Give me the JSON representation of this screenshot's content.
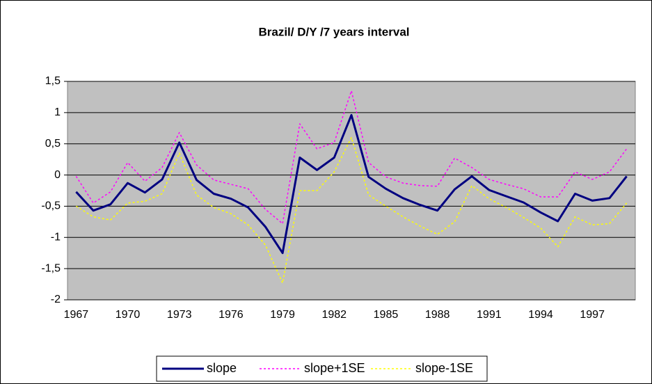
{
  "chart_data": {
    "type": "line",
    "title": "Brazil/ D/Y /7 years interval",
    "categories": [
      "1967",
      null,
      null,
      "1970",
      null,
      null,
      "1973",
      null,
      null,
      "1976",
      null,
      null,
      "1979",
      null,
      null,
      "1982",
      null,
      null,
      "1985",
      null,
      null,
      "1988",
      null,
      null,
      "1991",
      null,
      null,
      "1994",
      null,
      null,
      "1997",
      null,
      null
    ],
    "series": [
      {
        "name": "slope",
        "color": "#000080",
        "dashed": false,
        "values": [
          -0.27,
          -0.57,
          -0.47,
          -0.13,
          -0.28,
          -0.07,
          0.52,
          -0.08,
          -0.3,
          -0.38,
          -0.52,
          -0.83,
          -1.25,
          0.28,
          0.08,
          0.28,
          0.96,
          -0.03,
          -0.22,
          -0.37,
          -0.48,
          -0.57,
          -0.23,
          -0.02,
          -0.24,
          -0.34,
          -0.44,
          -0.6,
          -0.74,
          -0.3,
          -0.41,
          -0.37,
          -0.02
        ]
      },
      {
        "name": "slope+1SE",
        "color": "#ff00ff",
        "dashed": true,
        "values": [
          -0.02,
          -0.45,
          -0.27,
          0.2,
          -0.1,
          0.12,
          0.68,
          0.16,
          -0.08,
          -0.15,
          -0.22,
          -0.55,
          -0.78,
          0.82,
          0.42,
          0.52,
          1.35,
          0.2,
          -0.03,
          -0.13,
          -0.17,
          -0.18,
          0.27,
          0.12,
          -0.07,
          -0.15,
          -0.22,
          -0.35,
          -0.35,
          0.05,
          -0.07,
          0.05,
          0.42
        ]
      },
      {
        "name": "slope-1SE",
        "color": "#ffff00",
        "dashed": true,
        "values": [
          -0.5,
          -0.67,
          -0.72,
          -0.45,
          -0.42,
          -0.3,
          0.35,
          -0.32,
          -0.52,
          -0.62,
          -0.8,
          -1.12,
          -1.73,
          -0.25,
          -0.25,
          0.05,
          0.6,
          -0.32,
          -0.5,
          -0.67,
          -0.82,
          -0.95,
          -0.75,
          -0.17,
          -0.38,
          -0.52,
          -0.68,
          -0.85,
          -1.15,
          -0.67,
          -0.8,
          -0.78,
          -0.45
        ]
      }
    ],
    "ylim": [
      -2,
      1.5
    ],
    "yticks": [
      -2,
      {
        "value": -1.5,
        "label": "-1,5"
      },
      -1,
      {
        "value": -0.5,
        "label": "-0,5"
      },
      0,
      {
        "value": 0.5,
        "label": "0,5"
      },
      1,
      {
        "value": 1.5,
        "label": "1,5"
      }
    ],
    "grid": true,
    "legend": "bottom"
  }
}
